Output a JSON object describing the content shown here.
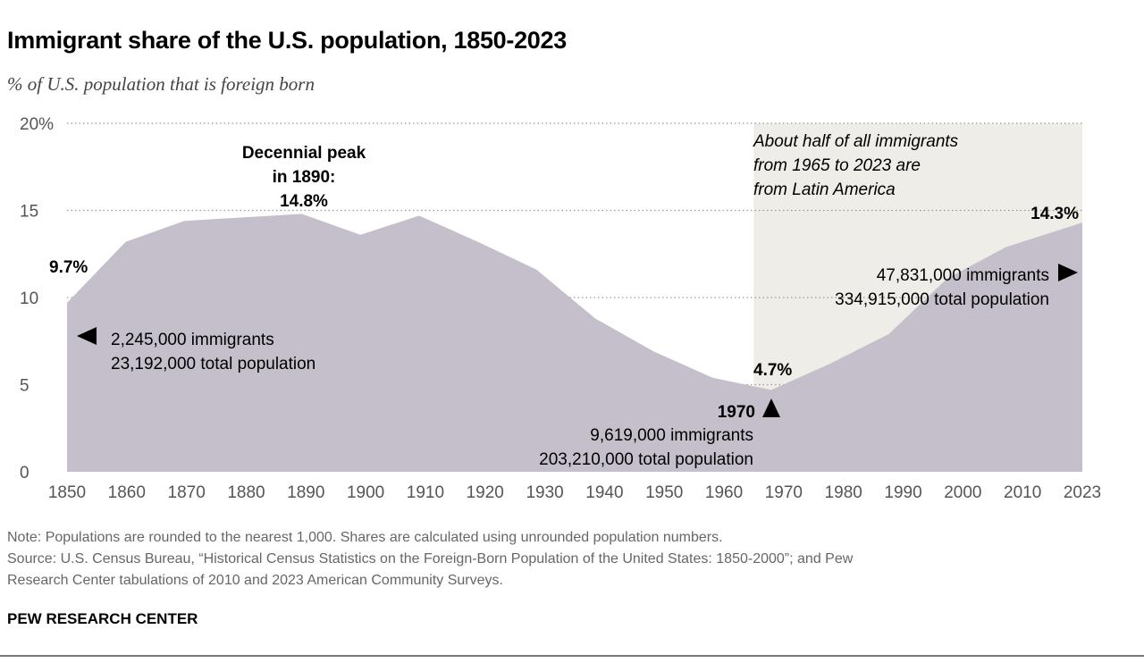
{
  "title": "Immigrant share of the U.S. population, 1850-2023",
  "subtitle": "% of U.S. population that is foreign born",
  "chart_data": {
    "type": "area",
    "title": "Immigrant share of the U.S. population, 1850-2023",
    "ylabel": "% of U.S. population that is foreign born",
    "x": [
      1850,
      1860,
      1870,
      1890,
      1900,
      1910,
      1920,
      1930,
      1940,
      1950,
      1960,
      1970,
      1980,
      1990,
      2000,
      2010,
      2023
    ],
    "values": [
      9.7,
      13.2,
      14.4,
      14.8,
      13.6,
      14.7,
      13.2,
      11.6,
      8.8,
      6.9,
      5.4,
      4.7,
      6.2,
      7.9,
      11.1,
      12.9,
      14.3
    ],
    "xticks": [
      "1850",
      "1860",
      "1870",
      "1880",
      "1890",
      "1900",
      "1910",
      "1920",
      "1930",
      "1940",
      "1950",
      "1960",
      "1970",
      "1980",
      "1990",
      "2000",
      "2010",
      "2023"
    ],
    "yticks": [
      "0",
      "5",
      "10",
      "15",
      "20%"
    ],
    "ylim": [
      0,
      20
    ],
    "xlim": [
      1850,
      2023
    ],
    "grid": true,
    "colors": {
      "area": "#c4bfca",
      "highlight": "#eeede7"
    },
    "highlight_range": [
      1967,
      2023
    ],
    "annotations": {
      "highlight_text": [
        "About half of all immigrants",
        "from 1965 to 2023 are",
        "from Latin America"
      ],
      "peak": [
        "Decennial peak",
        "in 1890:",
        "14.8%"
      ],
      "start_value": "9.7%",
      "start_detail": [
        "2,245,000 immigrants",
        "23,192,000 total population"
      ],
      "low_value": "4.7%",
      "low_year": "1970",
      "low_detail": [
        "9,619,000 immigrants",
        "203,210,000 total population"
      ],
      "end_value": "14.3%",
      "end_detail": [
        "47,831,000 immigrants",
        "334,915,000 total population"
      ]
    }
  },
  "footer": {
    "note": "Note: Populations are rounded to the nearest 1,000. Shares are calculated using unrounded population numbers.",
    "source1": "Source: U.S. Census Bureau, “Historical Census Statistics on the Foreign-Born Population of the United States: 1850-2000”; and Pew",
    "source2": "Research Center tabulations of 2010 and 2023 American Community Surveys.",
    "brand": "PEW RESEARCH CENTER"
  }
}
